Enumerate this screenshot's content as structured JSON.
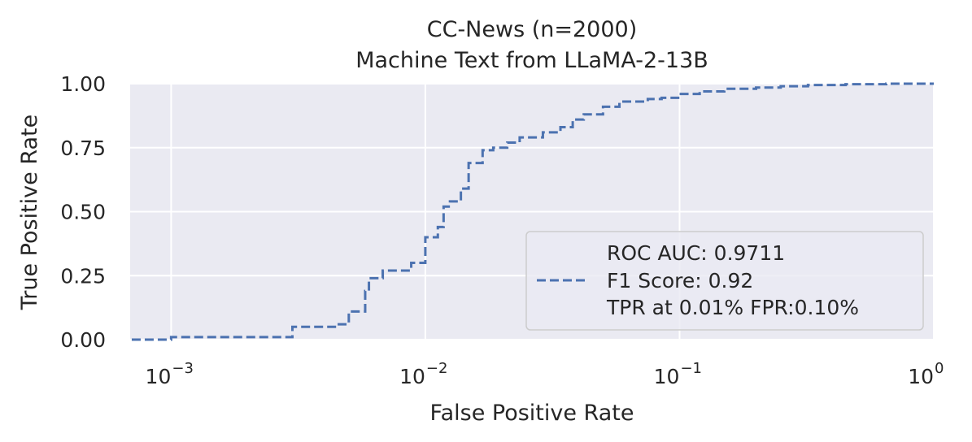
{
  "chart_data": {
    "type": "line",
    "title": "CC-News (n=2000)",
    "subtitle": "Machine Text from LLaMA-2-13B",
    "xlabel": "False Positive Rate",
    "ylabel": "True Positive Rate",
    "xscale": "log",
    "xlim": [
      0.00069,
      1.0
    ],
    "ylim": [
      0.0,
      1.0
    ],
    "grid": true,
    "legend_position": "lower right",
    "x_ticks": [
      {
        "value": 0.001,
        "base": "10",
        "exp": "−3"
      },
      {
        "value": 0.01,
        "base": "10",
        "exp": "−2"
      },
      {
        "value": 0.1,
        "base": "10",
        "exp": "−1"
      },
      {
        "value": 1.0,
        "base": "10",
        "exp": "0"
      }
    ],
    "y_ticks": [
      {
        "value": 0.0,
        "label": "0.00"
      },
      {
        "value": 0.25,
        "label": "0.25"
      },
      {
        "value": 0.5,
        "label": "0.50"
      },
      {
        "value": 0.75,
        "label": "0.75"
      },
      {
        "value": 1.0,
        "label": "1.00"
      }
    ],
    "series": [
      {
        "color": "#4c72b0",
        "linestyle": "dashed",
        "legend_lines": [
          "ROC AUC: 0.9711",
          "F1 Score: 0.92",
          "TPR at 0.01% FPR:0.10%"
        ],
        "x": [
          0.0007,
          0.001,
          0.001,
          0.003,
          0.003,
          0.0045,
          0.0045,
          0.005,
          0.005,
          0.0058,
          0.0058,
          0.006,
          0.006,
          0.0068,
          0.0068,
          0.0088,
          0.0088,
          0.01,
          0.01,
          0.0112,
          0.0112,
          0.0118,
          0.0118,
          0.0125,
          0.0125,
          0.0138,
          0.0138,
          0.0148,
          0.0148,
          0.0168,
          0.0168,
          0.0185,
          0.0185,
          0.021,
          0.021,
          0.0235,
          0.0235,
          0.029,
          0.029,
          0.034,
          0.034,
          0.038,
          0.038,
          0.042,
          0.042,
          0.05,
          0.05,
          0.058,
          0.058,
          0.075,
          0.075,
          0.085,
          0.085,
          0.1,
          0.1,
          0.12,
          0.12,
          0.15,
          0.15,
          0.2,
          0.2,
          0.25,
          0.25,
          0.32,
          0.32,
          0.45,
          0.45,
          0.65,
          0.65,
          1.0
        ],
        "y": [
          0.0,
          0.0,
          0.01,
          0.01,
          0.05,
          0.05,
          0.06,
          0.06,
          0.11,
          0.11,
          0.19,
          0.19,
          0.24,
          0.24,
          0.27,
          0.27,
          0.3,
          0.3,
          0.4,
          0.4,
          0.44,
          0.44,
          0.52,
          0.52,
          0.54,
          0.54,
          0.59,
          0.59,
          0.69,
          0.69,
          0.74,
          0.74,
          0.75,
          0.75,
          0.77,
          0.77,
          0.79,
          0.79,
          0.81,
          0.81,
          0.83,
          0.83,
          0.86,
          0.86,
          0.88,
          0.88,
          0.91,
          0.91,
          0.93,
          0.93,
          0.94,
          0.94,
          0.945,
          0.945,
          0.96,
          0.96,
          0.97,
          0.97,
          0.98,
          0.98,
          0.985,
          0.985,
          0.99,
          0.99,
          0.995,
          0.995,
          0.998,
          0.998,
          1.0,
          1.0
        ]
      }
    ]
  }
}
